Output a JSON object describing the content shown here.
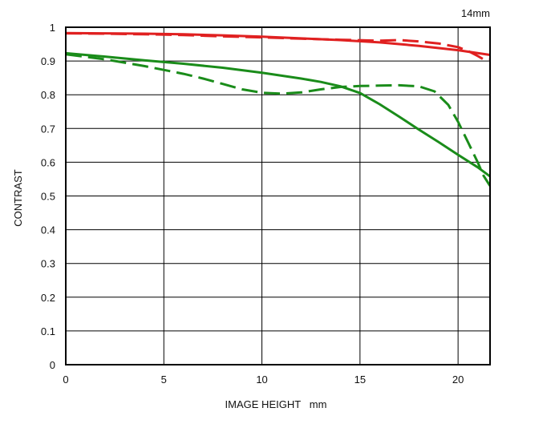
{
  "chart_data": {
    "type": "line",
    "title": "14mm",
    "xlabel": "IMAGE HEIGHT   mm",
    "ylabel": "CONTRAST",
    "xlim": [
      0,
      21.63
    ],
    "ylim": [
      0,
      1
    ],
    "grid": true,
    "x_ticks": [
      "0",
      "5",
      "10",
      "15",
      "20"
    ],
    "x_tick_values": [
      0,
      5,
      10,
      15,
      20
    ],
    "y_ticks": [
      "0",
      "0.1",
      "0.2",
      "0.3",
      "0.4",
      "0.5",
      "0.6",
      "0.7",
      "0.8",
      "0.9",
      "1"
    ],
    "y_tick_values": [
      0,
      0.1,
      0.2,
      0.3,
      0.4,
      0.5,
      0.6,
      0.7,
      0.8,
      0.9,
      1.0
    ],
    "series": [
      {
        "color": "#e02020",
        "dash": "solid",
        "x": [
          0,
          2,
          4,
          6,
          8,
          10,
          12,
          14,
          16,
          18,
          20,
          21.63
        ],
        "y": [
          0.983,
          0.982,
          0.981,
          0.979,
          0.976,
          0.972,
          0.967,
          0.962,
          0.955,
          0.945,
          0.932,
          0.918
        ]
      },
      {
        "color": "#e02020",
        "dash": "dashed",
        "x": [
          0,
          2,
          4,
          6,
          8,
          10,
          12,
          14,
          16,
          17,
          18,
          19,
          20,
          20.5,
          21,
          21.3,
          21.63
        ],
        "y": [
          0.982,
          0.981,
          0.979,
          0.977,
          0.973,
          0.97,
          0.966,
          0.963,
          0.96,
          0.962,
          0.958,
          0.952,
          0.941,
          0.93,
          0.915,
          0.905,
          0.905
        ]
      },
      {
        "color": "#1a8c1a",
        "dash": "solid",
        "x": [
          0,
          2,
          4,
          6,
          8,
          10,
          12,
          13,
          14,
          15,
          16,
          17,
          18,
          19,
          20,
          21,
          21.63
        ],
        "y": [
          0.923,
          0.913,
          0.902,
          0.892,
          0.88,
          0.865,
          0.848,
          0.838,
          0.825,
          0.805,
          0.772,
          0.735,
          0.697,
          0.66,
          0.622,
          0.585,
          0.558
        ]
      },
      {
        "color": "#1a8c1a",
        "dash": "dashed",
        "x": [
          0,
          2,
          4,
          6,
          7,
          8,
          9,
          10,
          11,
          12,
          13,
          14,
          15,
          16,
          17,
          18,
          18.8,
          19.5,
          20,
          20.5,
          21,
          21.3,
          21.63
        ],
        "y": [
          0.92,
          0.905,
          0.885,
          0.862,
          0.848,
          0.832,
          0.816,
          0.806,
          0.803,
          0.807,
          0.816,
          0.823,
          0.826,
          0.827,
          0.828,
          0.825,
          0.81,
          0.77,
          0.72,
          0.66,
          0.6,
          0.56,
          0.53
        ]
      }
    ]
  }
}
